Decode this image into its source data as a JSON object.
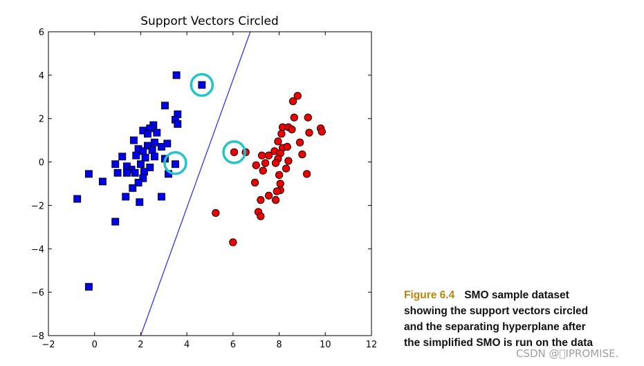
{
  "chart_data": {
    "type": "scatter",
    "title": "Support Vectors Circled",
    "xlabel": "",
    "ylabel": "",
    "xlim": [
      -2,
      12
    ],
    "ylim": [
      -8,
      6
    ],
    "x_ticks": [
      -2,
      0,
      2,
      4,
      6,
      8,
      10,
      12
    ],
    "y_ticks": [
      -8,
      -6,
      -4,
      -2,
      0,
      2,
      4,
      6
    ],
    "x_tick_labels": [
      "−2",
      "0",
      "2",
      "4",
      "6",
      "8",
      "10",
      "12"
    ],
    "y_tick_labels": [
      "−8",
      "−6",
      "−4",
      "−2",
      "0",
      "2",
      "4",
      "6"
    ],
    "grid": false,
    "series": [
      {
        "marker": "square",
        "color": "#0000ee",
        "points": [
          [
            3.55,
            4.0
          ],
          [
            4.65,
            3.55
          ],
          [
            3.05,
            2.6
          ],
          [
            3.6,
            2.2
          ],
          [
            3.5,
            1.95
          ],
          [
            3.6,
            1.75
          ],
          [
            2.55,
            1.7
          ],
          [
            2.4,
            1.55
          ],
          [
            2.1,
            1.45
          ],
          [
            2.3,
            1.3
          ],
          [
            2.7,
            1.35
          ],
          [
            1.7,
            1.0
          ],
          [
            2.6,
            0.9
          ],
          [
            2.3,
            0.75
          ],
          [
            2.9,
            0.7
          ],
          [
            3.15,
            0.85
          ],
          [
            1.9,
            0.6
          ],
          [
            2.1,
            0.5
          ],
          [
            2.5,
            0.55
          ],
          [
            1.2,
            0.25
          ],
          [
            1.8,
            0.3
          ],
          [
            2.2,
            0.2
          ],
          [
            2.6,
            0.25
          ],
          [
            3.05,
            0.15
          ],
          [
            3.5,
            -0.1
          ],
          [
            0.9,
            -0.1
          ],
          [
            1.4,
            -0.2
          ],
          [
            2.0,
            -0.1
          ],
          [
            2.4,
            -0.25
          ],
          [
            1.6,
            -0.35
          ],
          [
            2.15,
            -0.45
          ],
          [
            1.0,
            -0.5
          ],
          [
            1.4,
            -0.5
          ],
          [
            1.75,
            -0.5
          ],
          [
            2.1,
            -0.75
          ],
          [
            3.2,
            -0.55
          ],
          [
            1.9,
            -0.95
          ],
          [
            1.65,
            -1.2
          ],
          [
            -0.25,
            -0.55
          ],
          [
            0.35,
            -0.9
          ],
          [
            1.35,
            -1.6
          ],
          [
            2.9,
            -1.6
          ],
          [
            1.95,
            -1.85
          ],
          [
            -0.75,
            -1.7
          ],
          [
            0.9,
            -2.75
          ],
          [
            -0.25,
            -5.75
          ]
        ]
      },
      {
        "marker": "circle",
        "color": "#ee0000",
        "points": [
          [
            8.8,
            3.05
          ],
          [
            8.6,
            2.8
          ],
          [
            8.65,
            2.05
          ],
          [
            9.25,
            2.05
          ],
          [
            8.15,
            1.6
          ],
          [
            8.4,
            1.6
          ],
          [
            8.55,
            1.5
          ],
          [
            8.1,
            1.3
          ],
          [
            9.3,
            1.35
          ],
          [
            9.8,
            1.55
          ],
          [
            9.85,
            1.4
          ],
          [
            8.9,
            0.9
          ],
          [
            9.0,
            0.35
          ],
          [
            7.95,
            0.95
          ],
          [
            8.15,
            0.65
          ],
          [
            8.35,
            0.7
          ],
          [
            7.8,
            0.5
          ],
          [
            8.05,
            0.4
          ],
          [
            6.05,
            0.45
          ],
          [
            6.55,
            0.45
          ],
          [
            7.25,
            0.3
          ],
          [
            7.55,
            0.3
          ],
          [
            7.95,
            0.15
          ],
          [
            8.4,
            0.05
          ],
          [
            7.0,
            -0.15
          ],
          [
            7.4,
            -0.05
          ],
          [
            7.85,
            -0.05
          ],
          [
            8.3,
            -0.3
          ],
          [
            7.3,
            -0.4
          ],
          [
            8.0,
            -0.6
          ],
          [
            9.2,
            -0.55
          ],
          [
            6.95,
            -0.95
          ],
          [
            8.05,
            -1.0
          ],
          [
            8.05,
            -1.3
          ],
          [
            7.9,
            -1.35
          ],
          [
            7.55,
            -1.55
          ],
          [
            7.2,
            -1.75
          ],
          [
            7.85,
            -1.75
          ],
          [
            5.25,
            -2.35
          ],
          [
            7.1,
            -2.3
          ],
          [
            7.2,
            -2.5
          ],
          [
            6.0,
            -3.7
          ]
        ]
      }
    ],
    "support_vectors": [
      [
        4.65,
        3.55
      ],
      [
        3.5,
        -0.05
      ],
      [
        6.05,
        0.45
      ]
    ],
    "support_vector_color": "#22c4c4",
    "hyperplane": {
      "color": "#3333ee",
      "points": [
        [
          2.0,
          -8.0
        ],
        [
          6.75,
          6.0
        ]
      ]
    }
  },
  "caption": {
    "figure_label": "Figure 6.4",
    "lines": [
      "SMO sample dataset",
      "showing the support vectors circled",
      "and the separating hyperplane after",
      "the simplified SMO is run on the data"
    ]
  },
  "watermark": "CSDN @\u0000IPROMISE."
}
